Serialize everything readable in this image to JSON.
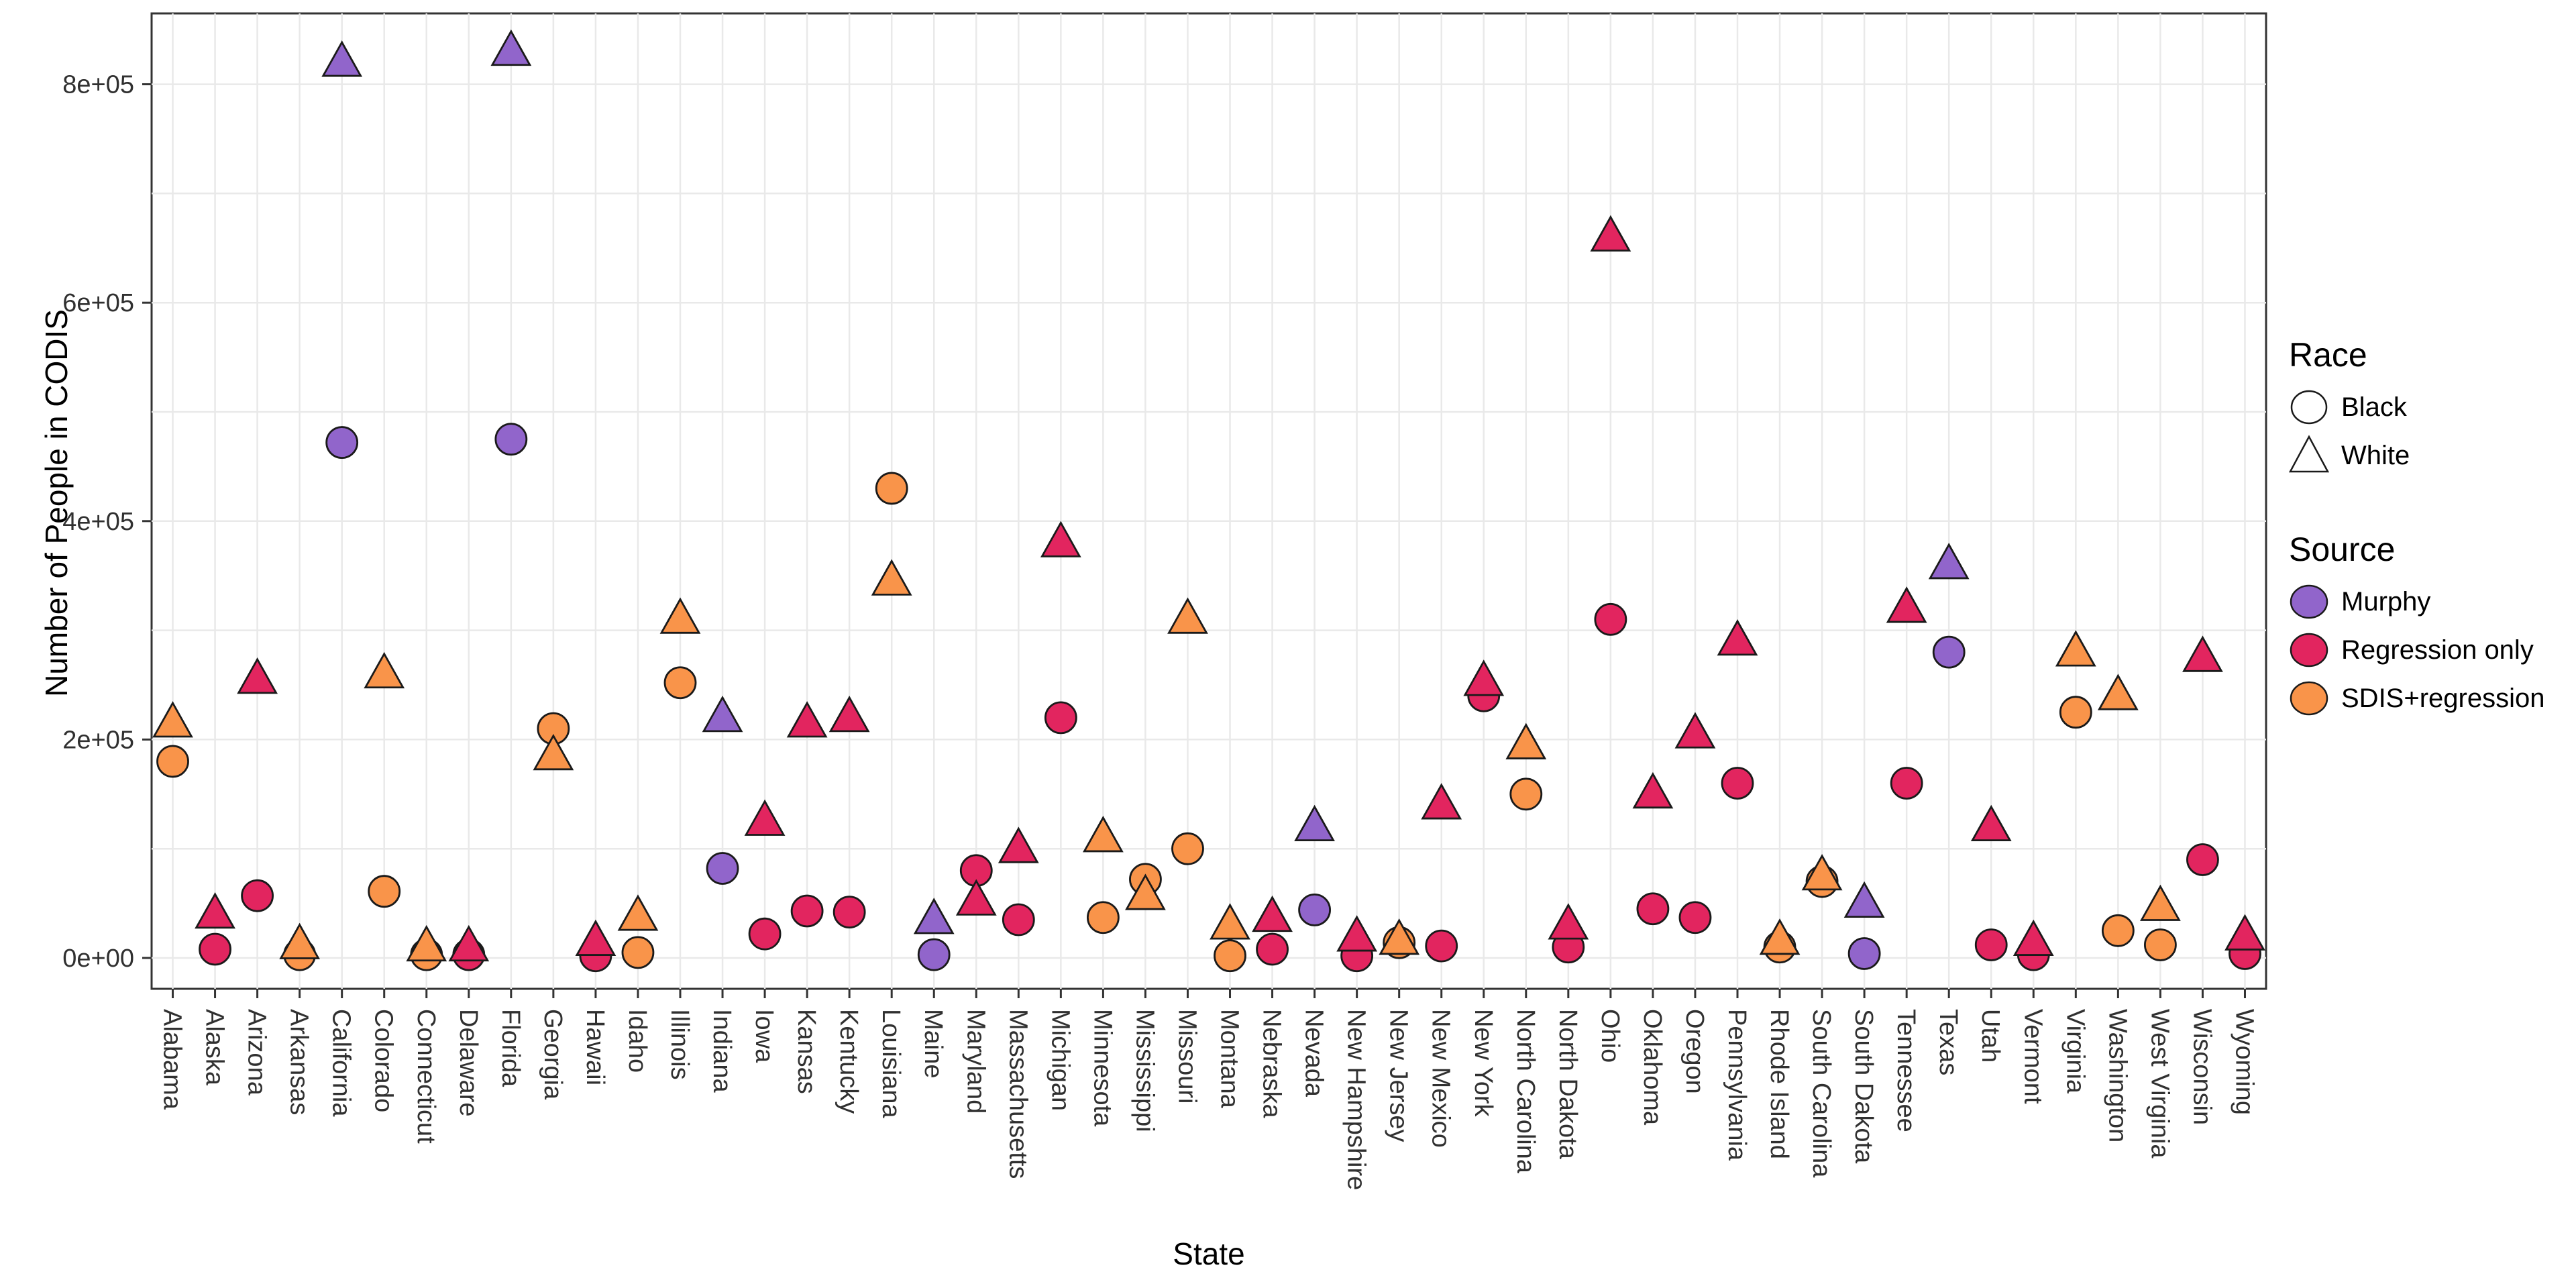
{
  "chart_data": {
    "type": "scatter",
    "title": "",
    "xlabel": "State",
    "ylabel": "Number of People in CODIS",
    "ylim": [
      0,
      865000
    ],
    "y_ticks": [
      {
        "value": 0,
        "label": "0e+00"
      },
      {
        "value": 200000,
        "label": "2e+05"
      },
      {
        "value": 400000,
        "label": "4e+05"
      },
      {
        "value": 600000,
        "label": "6e+05"
      },
      {
        "value": 800000,
        "label": "8e+05"
      }
    ],
    "gridline_step": 100000,
    "grid_on": true,
    "legend_position": "right",
    "race_shapes": {
      "Black": "circle",
      "White": "triangle"
    },
    "source_colors": {
      "Murphy": "#9165CB",
      "Regression only": "#E2255F",
      "SDIS+regression": "#F9944A"
    },
    "series_note": "white = White (triangle) value, black = Black (circle) value, per state",
    "states": [
      {
        "name": "Alabama",
        "source": "SDIS+regression",
        "white": 215000,
        "black": 180000
      },
      {
        "name": "Alaska",
        "source": "Regression only",
        "white": 40000,
        "black": 8000
      },
      {
        "name": "Arizona",
        "source": "Regression only",
        "white": 255000,
        "black": 57000
      },
      {
        "name": "Arkansas",
        "source": "SDIS+regression",
        "white": 12000,
        "black": 3000
      },
      {
        "name": "California",
        "source": "Murphy",
        "white": 820000,
        "black": 472000
      },
      {
        "name": "Colorado",
        "source": "SDIS+regression",
        "white": 260000,
        "black": 61000
      },
      {
        "name": "Connecticut",
        "source": "SDIS+regression",
        "white": 10000,
        "black": 3000
      },
      {
        "name": "Delaware",
        "source": "Regression only",
        "white": 10000,
        "black": 3000
      },
      {
        "name": "Florida",
        "source": "Murphy",
        "white": 830000,
        "black": 475000
      },
      {
        "name": "Georgia",
        "source": "SDIS+regression",
        "white": 185000,
        "black": 210000
      },
      {
        "name": "Hawaii",
        "source": "Regression only",
        "white": 15000,
        "black": 2000
      },
      {
        "name": "Idaho",
        "source": "SDIS+regression",
        "white": 38000,
        "black": 5000
      },
      {
        "name": "Illinois",
        "source": "SDIS+regression",
        "white": 310000,
        "black": 252000
      },
      {
        "name": "Indiana",
        "source": "Murphy",
        "white": 220000,
        "black": 82000
      },
      {
        "name": "Iowa",
        "source": "Regression only",
        "white": 125000,
        "black": 22000
      },
      {
        "name": "Kansas",
        "source": "Regression only",
        "white": 215000,
        "black": 43000
      },
      {
        "name": "Kentucky",
        "source": "Regression only",
        "white": 220000,
        "black": 42000
      },
      {
        "name": "Louisiana",
        "source": "SDIS+regression",
        "white": 345000,
        "black": 430000
      },
      {
        "name": "Maine",
        "source": "Murphy",
        "white": 35000,
        "black": 3000
      },
      {
        "name": "Maryland",
        "source": "Regression only",
        "white": 52000,
        "black": 80000
      },
      {
        "name": "Massachusetts",
        "source": "Regression only",
        "white": 100000,
        "black": 35000
      },
      {
        "name": "Michigan",
        "source": "Regression only",
        "white": 380000,
        "black": 220000
      },
      {
        "name": "Minnesota",
        "source": "SDIS+regression",
        "white": 110000,
        "black": 37000
      },
      {
        "name": "Mississippi",
        "source": "SDIS+regression",
        "white": 57000,
        "black": 72000
      },
      {
        "name": "Missouri",
        "source": "SDIS+regression",
        "white": 310000,
        "black": 100000
      },
      {
        "name": "Montana",
        "source": "SDIS+regression",
        "white": 30000,
        "black": 2000
      },
      {
        "name": "Nebraska",
        "source": "Regression only",
        "white": 37000,
        "black": 8000
      },
      {
        "name": "Nevada",
        "source": "Murphy",
        "white": 120000,
        "black": 44000
      },
      {
        "name": "New Hampshire",
        "source": "Regression only",
        "white": 19000,
        "black": 2000
      },
      {
        "name": "New Jersey",
        "source": "SDIS+regression",
        "white": 16000,
        "black": 14000
      },
      {
        "name": "New Mexico",
        "source": "Regression only",
        "white": 140000,
        "black": 11000
      },
      {
        "name": "New York",
        "source": "Regression only",
        "white": 253000,
        "black": 240000
      },
      {
        "name": "North Carolina",
        "source": "SDIS+regression",
        "white": 195000,
        "black": 150000
      },
      {
        "name": "North Dakota",
        "source": "Regression only",
        "white": 30000,
        "black": 10000
      },
      {
        "name": "Ohio",
        "source": "Regression only",
        "white": 660000,
        "black": 310000
      },
      {
        "name": "Oklahoma",
        "source": "Regression only",
        "white": 150000,
        "black": 45000
      },
      {
        "name": "Oregon",
        "source": "Regression only",
        "white": 205000,
        "black": 37000
      },
      {
        "name": "Pennsylvania",
        "source": "Regression only",
        "white": 290000,
        "black": 160000
      },
      {
        "name": "Rhode Island",
        "source": "SDIS+regression",
        "white": 16000,
        "black": 10000
      },
      {
        "name": "South Carolina",
        "source": "SDIS+regression",
        "white": 75000,
        "black": 70000
      },
      {
        "name": "South Dakota",
        "source": "Murphy",
        "white": 50000,
        "black": 4000
      },
      {
        "name": "Tennessee",
        "source": "Regression only",
        "white": 320000,
        "black": 160000
      },
      {
        "name": "Texas",
        "source": "Murphy",
        "white": 360000,
        "black": 280000
      },
      {
        "name": "Utah",
        "source": "Regression only",
        "white": 120000,
        "black": 12000
      },
      {
        "name": "Vermont",
        "source": "Regression only",
        "white": 15000,
        "black": 3000
      },
      {
        "name": "Virginia",
        "source": "SDIS+regression",
        "white": 280000,
        "black": 225000
      },
      {
        "name": "Washington",
        "source": "SDIS+regression",
        "white": 240000,
        "black": 25000
      },
      {
        "name": "West Virginia",
        "source": "SDIS+regression",
        "white": 47000,
        "black": 12000
      },
      {
        "name": "Wisconsin",
        "source": "Regression only",
        "white": 275000,
        "black": 90000
      },
      {
        "name": "Wyoming",
        "source": "Regression only",
        "white": 20000,
        "black": 4000
      }
    ]
  },
  "axis": {
    "x_title": "State",
    "y_title": "Number of People in CODIS"
  },
  "legend": {
    "race_title": "Race",
    "race_items": [
      {
        "label": "Black",
        "shape": "circle"
      },
      {
        "label": "White",
        "shape": "triangle"
      }
    ],
    "source_title": "Source",
    "source_items": [
      {
        "label": "Murphy",
        "color": "#9165CB"
      },
      {
        "label": "Regression only",
        "color": "#E2255F"
      },
      {
        "label": "SDIS+regression",
        "color": "#F9944A"
      }
    ]
  },
  "style": {
    "grid_color": "#E9E9E9",
    "panel_border_color": "#333333",
    "point_stroke_color": "#1A1A1A",
    "background": "#FFFFFF"
  }
}
